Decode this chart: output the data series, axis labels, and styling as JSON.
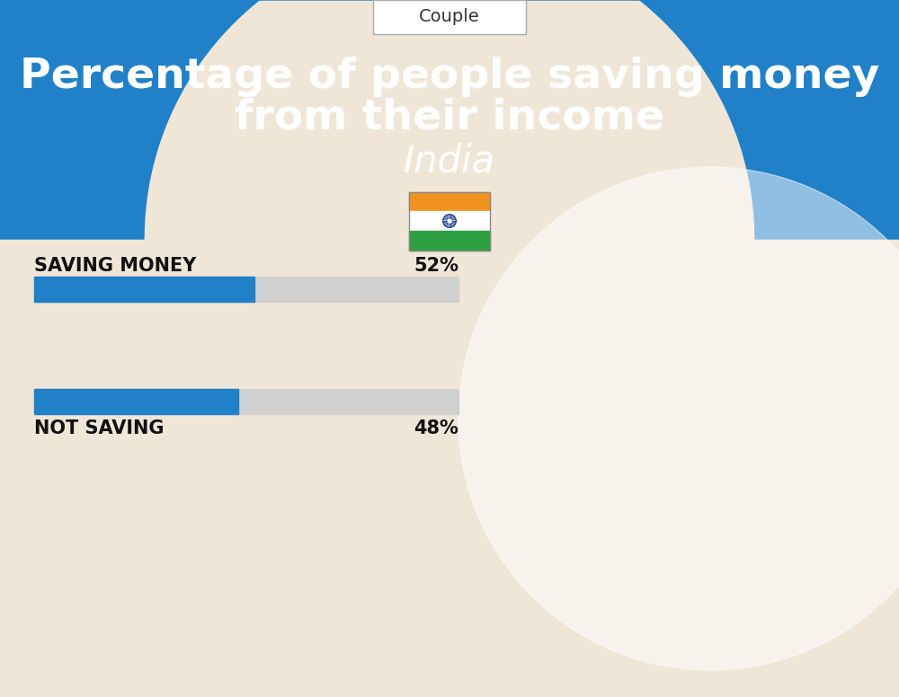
{
  "title_line1": "Percentage of people saving money",
  "title_line2": "from their income",
  "subtitle": "India",
  "tab_label": "Couple",
  "background_color": "#f0e6d8",
  "header_color": "#2080c8",
  "bar_color": "#2080c8",
  "bar_bg_color": "#d0d0d0",
  "bars": [
    {
      "label": "SAVING MONEY",
      "value": 52
    },
    {
      "label": "NOT SAVING",
      "value": 48
    }
  ],
  "title_color": "#ffffff",
  "subtitle_color": "#ffffff",
  "label_color": "#111111",
  "pct_color": "#111111",
  "tab_bg": "#ffffff",
  "tab_border": "#cccccc",
  "flag_orange": "#f0941f",
  "flag_white": "#ffffff",
  "flag_green": "#2d9e40",
  "flag_navy": "#1a3a8c"
}
